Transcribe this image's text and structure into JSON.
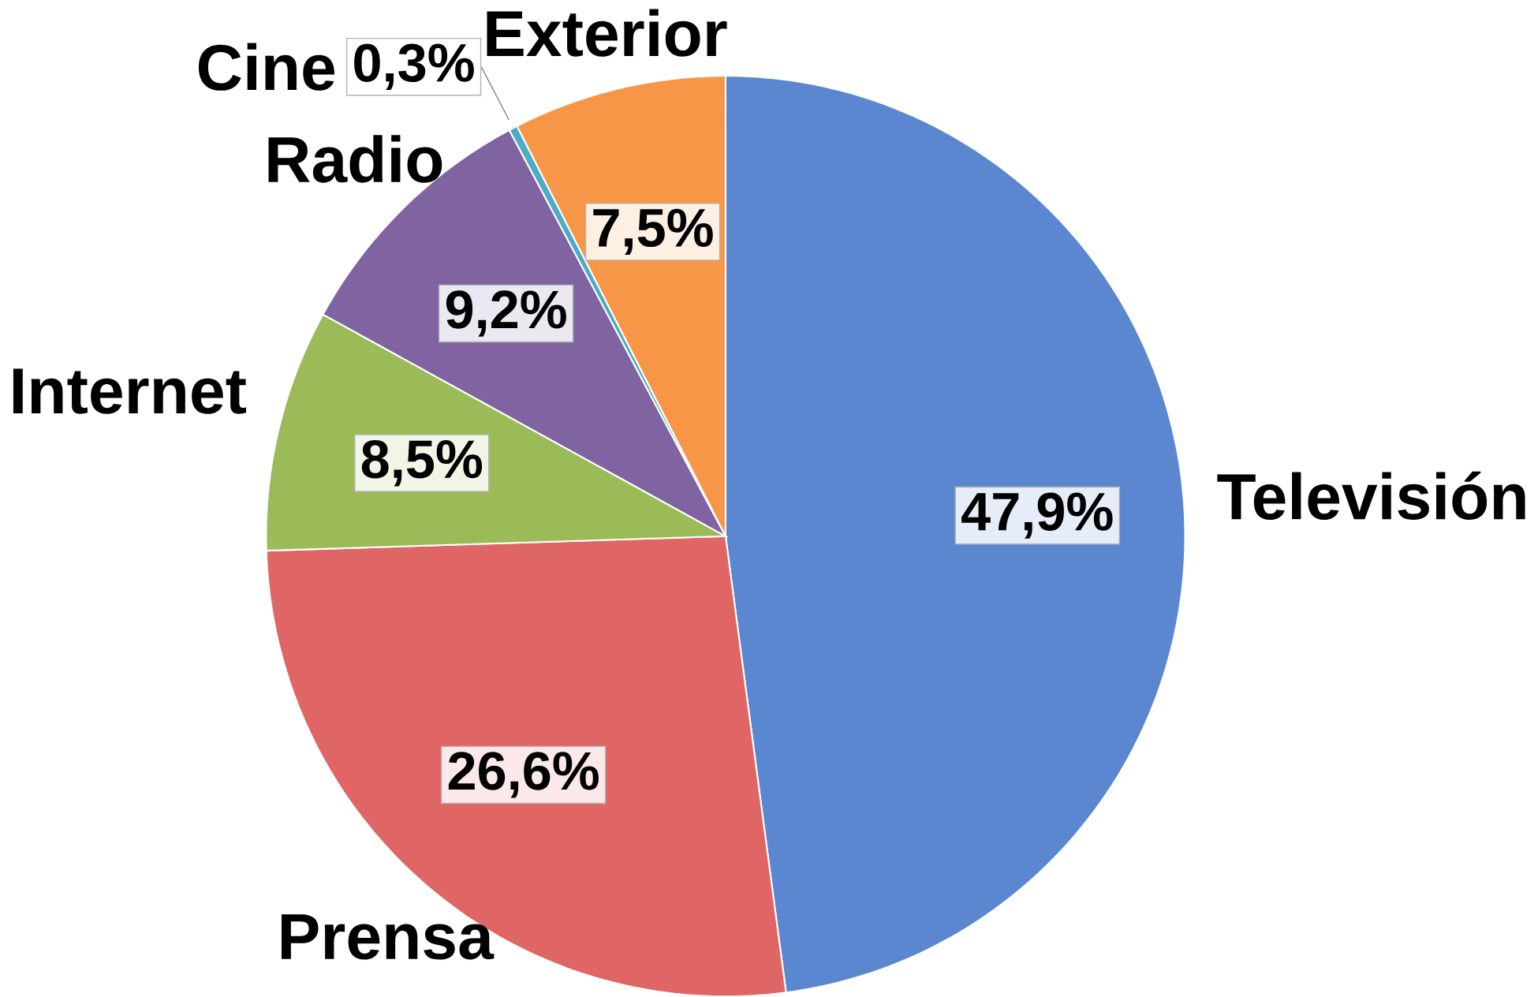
{
  "chart_data": {
    "type": "pie",
    "categories": [
      "Televisión",
      "Prensa",
      "Internet",
      "Radio",
      "Cine",
      "Exterior"
    ],
    "values": [
      47.9,
      26.6,
      8.5,
      9.2,
      0.3,
      7.5
    ],
    "value_labels": [
      "47,9%",
      "26,6%",
      "8,5%",
      "9,2%",
      "0,3%",
      "7,5%"
    ],
    "colors": [
      "#5b86d0",
      "#e06666",
      "#9bbb59",
      "#8064a2",
      "#4bacc6",
      "#f79646"
    ]
  }
}
